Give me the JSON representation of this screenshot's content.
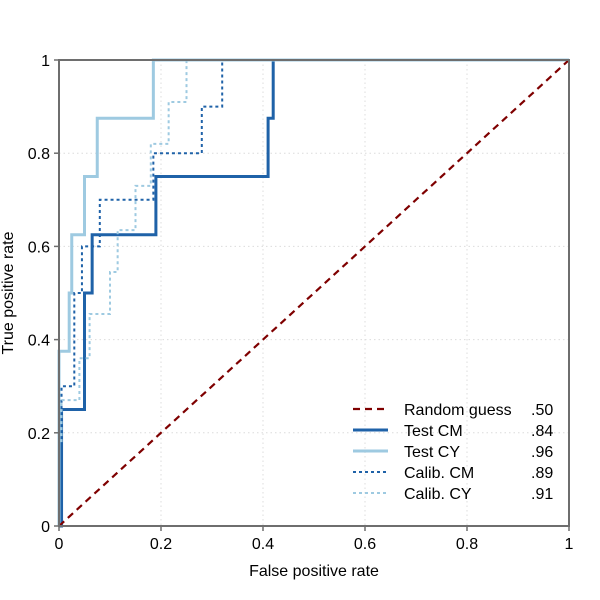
{
  "chart_data": {
    "type": "line",
    "title": "",
    "xlabel": "False positive rate",
    "ylabel": "True positive rate",
    "xlim": [
      0,
      1
    ],
    "ylim": [
      0,
      1
    ],
    "x_ticks": [
      "0",
      "0.2",
      "0.4",
      "0.6",
      "0.8",
      "1"
    ],
    "y_ticks": [
      "0",
      "0.2",
      "0.4",
      "0.6",
      "0.8",
      "1"
    ],
    "grid": true,
    "legend_position": "bottom-right",
    "series": [
      {
        "name": "Random guess",
        "auc_label": ".50",
        "color": "#7f0000",
        "style": "dashed",
        "points": [
          [
            0,
            0
          ],
          [
            1,
            1
          ]
        ]
      },
      {
        "name": "Test CM",
        "auc_label": ".84",
        "color": "#1f62a8",
        "style": "solid",
        "points": [
          [
            0,
            0
          ],
          [
            0.005,
            0
          ],
          [
            0.005,
            0.25
          ],
          [
            0.05,
            0.25
          ],
          [
            0.05,
            0.5
          ],
          [
            0.065,
            0.5
          ],
          [
            0.065,
            0.625
          ],
          [
            0.19,
            0.625
          ],
          [
            0.19,
            0.75
          ],
          [
            0.41,
            0.75
          ],
          [
            0.41,
            0.875
          ],
          [
            0.42,
            0.875
          ],
          [
            0.42,
            1
          ],
          [
            1,
            1
          ]
        ]
      },
      {
        "name": "Test CY",
        "auc_label": ".96",
        "color": "#9ecae1",
        "style": "solid",
        "points": [
          [
            0,
            0
          ],
          [
            0,
            0.375
          ],
          [
            0.02,
            0.375
          ],
          [
            0.02,
            0.5
          ],
          [
            0.025,
            0.5
          ],
          [
            0.025,
            0.625
          ],
          [
            0.05,
            0.625
          ],
          [
            0.05,
            0.75
          ],
          [
            0.075,
            0.75
          ],
          [
            0.075,
            0.875
          ],
          [
            0.185,
            0.875
          ],
          [
            0.185,
            1
          ],
          [
            1,
            1
          ]
        ]
      },
      {
        "name": "Calib. CM",
        "auc_label": ".89",
        "color": "#1f62a8",
        "style": "dotted",
        "points": [
          [
            0.005,
            0.2
          ],
          [
            0.005,
            0.3
          ],
          [
            0.03,
            0.3
          ],
          [
            0.03,
            0.5
          ],
          [
            0.045,
            0.5
          ],
          [
            0.045,
            0.6
          ],
          [
            0.08,
            0.6
          ],
          [
            0.08,
            0.7
          ],
          [
            0.185,
            0.7
          ],
          [
            0.185,
            0.8
          ],
          [
            0.28,
            0.8
          ],
          [
            0.28,
            0.9
          ],
          [
            0.32,
            0.9
          ],
          [
            0.32,
            1
          ],
          [
            1,
            1
          ]
        ]
      },
      {
        "name": "Calib. CY",
        "auc_label": ".91",
        "color": "#9ecae1",
        "style": "dotted",
        "points": [
          [
            0.005,
            0.18
          ],
          [
            0.005,
            0.27
          ],
          [
            0.04,
            0.27
          ],
          [
            0.04,
            0.36
          ],
          [
            0.06,
            0.36
          ],
          [
            0.06,
            0.455
          ],
          [
            0.1,
            0.455
          ],
          [
            0.1,
            0.545
          ],
          [
            0.115,
            0.545
          ],
          [
            0.115,
            0.635
          ],
          [
            0.15,
            0.635
          ],
          [
            0.15,
            0.73
          ],
          [
            0.18,
            0.73
          ],
          [
            0.18,
            0.82
          ],
          [
            0.215,
            0.82
          ],
          [
            0.215,
            0.91
          ],
          [
            0.25,
            0.91
          ],
          [
            0.25,
            1
          ],
          [
            1,
            1
          ]
        ]
      }
    ]
  }
}
